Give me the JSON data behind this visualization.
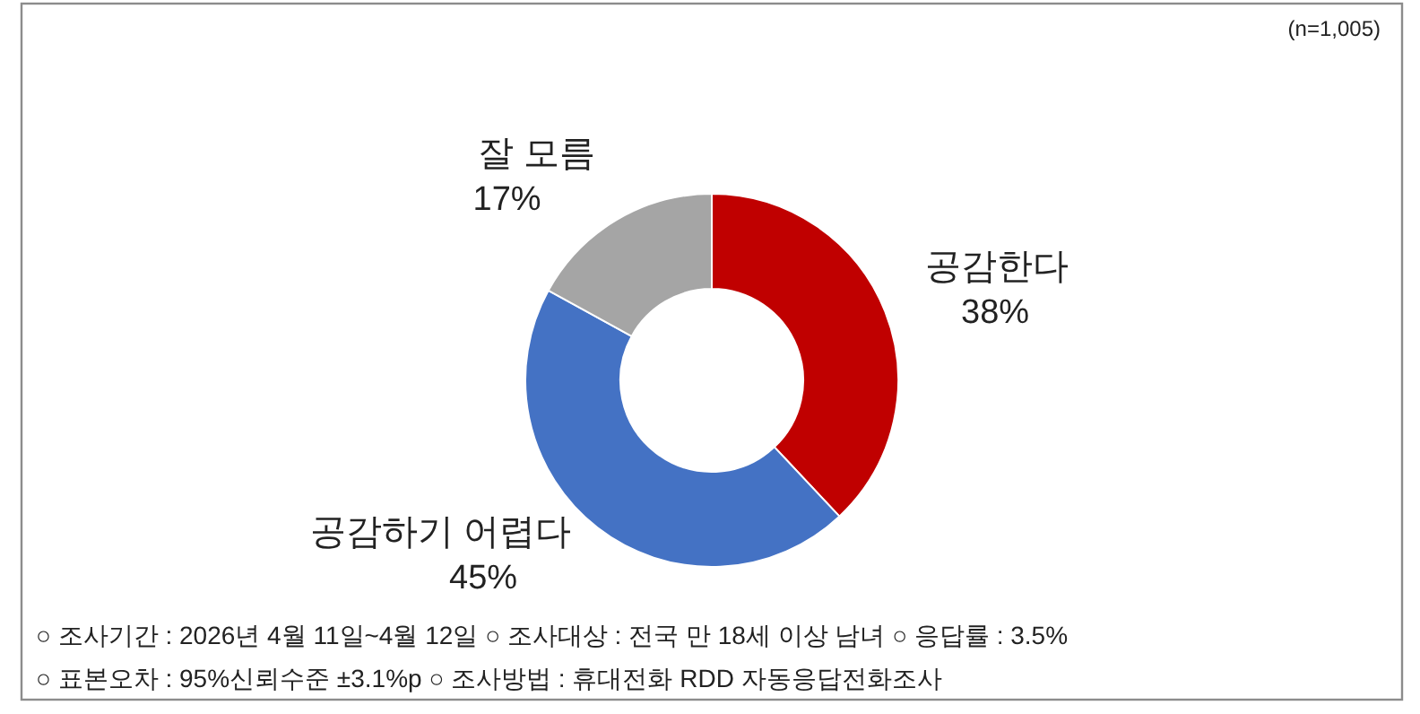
{
  "chart_data": {
    "type": "donut",
    "categories": [
      "공감한다",
      "공감하기 어렵다",
      "잘 모름"
    ],
    "values": [
      38,
      45,
      17
    ],
    "colors": [
      "#c00000",
      "#4472c4",
      "#a5a5a5"
    ],
    "value_labels": [
      "38%",
      "45%",
      "17%"
    ],
    "annotations": [
      "(n=1,005)",
      "○ 조사기간 : 2026년 4월 11일~4월 12일 ○ 조사대상 : 전국 만 18세 이상 남녀 ○ 응답률 : 3.5%",
      "○ 표본오차 : 95%신뢰수준  ±3.1%p ○ 조사방법 : 휴대전화 RDD 자동응답전화조사"
    ]
  }
}
